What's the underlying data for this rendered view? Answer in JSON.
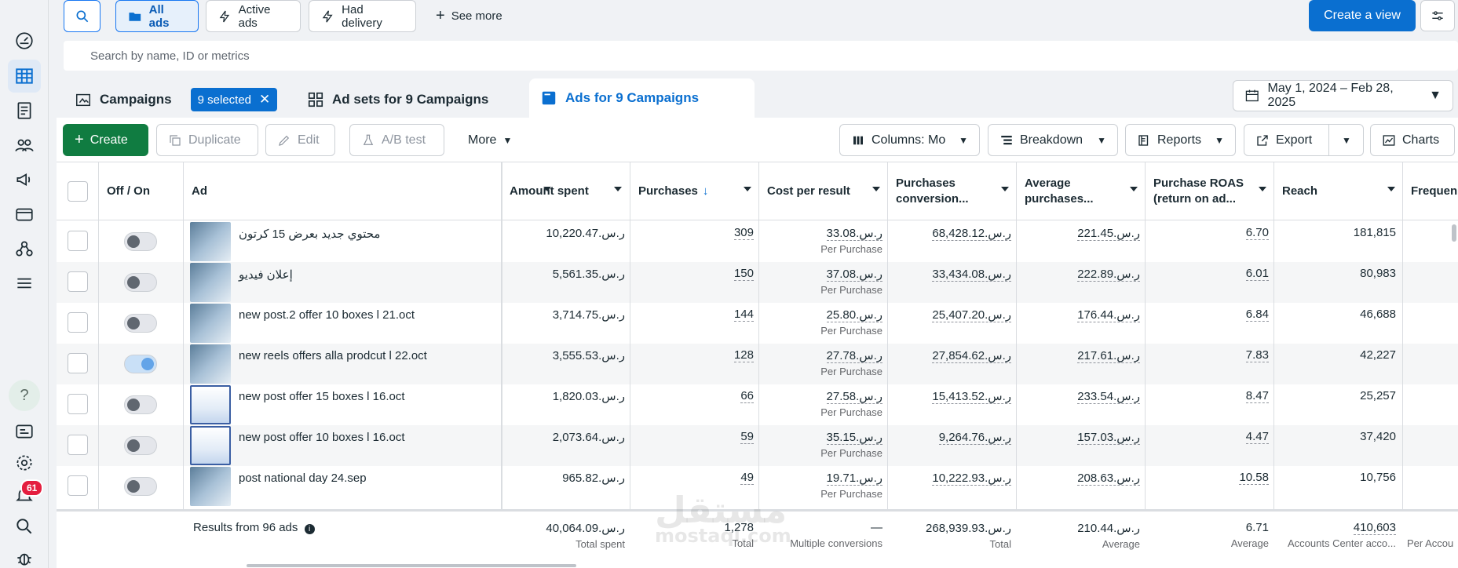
{
  "toolbar": {
    "all_ads": "All ads",
    "active_ads": "Active ads",
    "had_delivery": "Had delivery",
    "see_more": "See more",
    "create_view": "Create a view"
  },
  "search": {
    "placeholder": "Search by name, ID or metrics"
  },
  "tabs": {
    "campaigns": "Campaigns",
    "selected_chip": "9 selected",
    "ad_sets": "Ad sets for 9 Campaigns",
    "ads": "Ads for 9 Campaigns"
  },
  "date_range": "May 1, 2024 – Feb 28, 2025",
  "actions": {
    "create": "Create",
    "duplicate": "Duplicate",
    "edit": "Edit",
    "ab_test": "A/B test",
    "more": "More",
    "columns": "Columns: Mo",
    "breakdown": "Breakdown",
    "reports": "Reports",
    "export": "Export",
    "charts": "Charts"
  },
  "columns": {
    "off_on": "Off / On",
    "ad": "Ad",
    "amount_spent": "Amount spent",
    "purchases": "Purchases",
    "cost_per_result": "Cost per result",
    "purchases_conversion": "Purchases conversion...",
    "average_purchases": "Average purchases...",
    "purchase_roas": "Purchase ROAS (return on ad...",
    "reach": "Reach",
    "frequency": "Frequen"
  },
  "rows": [
    {
      "name": "محتوي جديد بعرض 15 كرتون",
      "on": false,
      "spent": "10,220.47.ر.س",
      "purchases": "309",
      "cost": "33.08.ر.س",
      "cost_sub": "Per Purchase",
      "conv": "68,428.12.ر.س",
      "avg": "221.45.ر.س",
      "roas": "6.70",
      "reach": "181,815"
    },
    {
      "name": "إعلان فيديو",
      "on": false,
      "spent": "5,561.35.ر.س",
      "purchases": "150",
      "cost": "37.08.ر.س",
      "cost_sub": "Per Purchase",
      "conv": "33,434.08.ر.س",
      "avg": "222.89.ر.س",
      "roas": "6.01",
      "reach": "80,983"
    },
    {
      "name": "new post.2 offer 10 boxes l 21.oct",
      "on": false,
      "spent": "3,714.75.ر.س",
      "purchases": "144",
      "cost": "25.80.ر.س",
      "cost_sub": "Per Purchase",
      "conv": "25,407.20.ر.س",
      "avg": "176.44.ر.س",
      "roas": "6.84",
      "reach": "46,688"
    },
    {
      "name": "new reels offers alla prodcut l 22.oct",
      "on": true,
      "spent": "3,555.53.ر.س",
      "purchases": "128",
      "cost": "27.78.ر.س",
      "cost_sub": "Per Purchase",
      "conv": "27,854.62.ر.س",
      "avg": "217.61.ر.س",
      "roas": "7.83",
      "reach": "42,227"
    },
    {
      "name": "new post offer 15 boxes l 16.oct",
      "on": false,
      "spent": "1,820.03.ر.س",
      "purchases": "66",
      "cost": "27.58.ر.س",
      "cost_sub": "Per Purchase",
      "conv": "15,413.52.ر.س",
      "avg": "233.54.ر.س",
      "roas": "8.47",
      "reach": "25,257"
    },
    {
      "name": "new post offer 10 boxes l 16.oct",
      "on": false,
      "spent": "2,073.64.ر.س",
      "purchases": "59",
      "cost": "35.15.ر.س",
      "cost_sub": "Per Purchase",
      "conv": "9,264.76.ر.س",
      "avg": "157.03.ر.س",
      "roas": "4.47",
      "reach": "37,420"
    },
    {
      "name": "post national day 24.sep",
      "on": false,
      "spent": "965.82.ر.س",
      "purchases": "49",
      "cost": "19.71.ر.س",
      "cost_sub": "Per Purchase",
      "conv": "10,222.93.ر.س",
      "avg": "208.63.ر.س",
      "roas": "10.58",
      "reach": "10,756"
    }
  ],
  "footer": {
    "results": "Results from 96 ads",
    "spent": "40,064.09.ر.س",
    "spent_sub": "Total spent",
    "purchases": "1,278",
    "purchases_sub": "Total",
    "cost": "—",
    "cost_sub": "Multiple conversions",
    "conv": "268,939.93.ر.س",
    "conv_sub": "Total",
    "avg": "210.44.ر.س",
    "avg_sub": "Average",
    "roas": "6.71",
    "roas_sub": "Average",
    "reach": "410,603",
    "reach_sub": "Accounts Center acco...",
    "freq_sub": "Per Accou"
  },
  "notifications_count": "61",
  "help_label": "?",
  "watermark": {
    "main": "مستقل",
    "sub": "mostaql.com"
  }
}
